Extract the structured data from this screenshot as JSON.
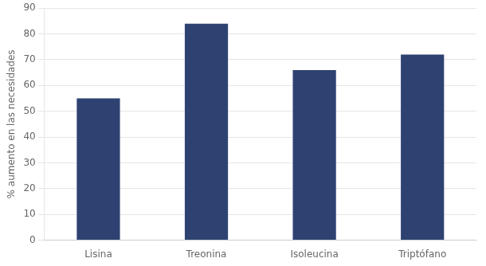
{
  "chart_data": {
    "type": "bar",
    "categories": [
      "Lisina",
      "Treonina",
      "Isoleucina",
      "Triptófano"
    ],
    "values": [
      55,
      84,
      66,
      72
    ],
    "color": "#2E4272",
    "ylabel": "% aumento en las necesidades",
    "ylim": [
      0,
      90
    ],
    "yticks": [
      0,
      10,
      20,
      30,
      40,
      50,
      60,
      70,
      80,
      90
    ],
    "grid": true
  }
}
